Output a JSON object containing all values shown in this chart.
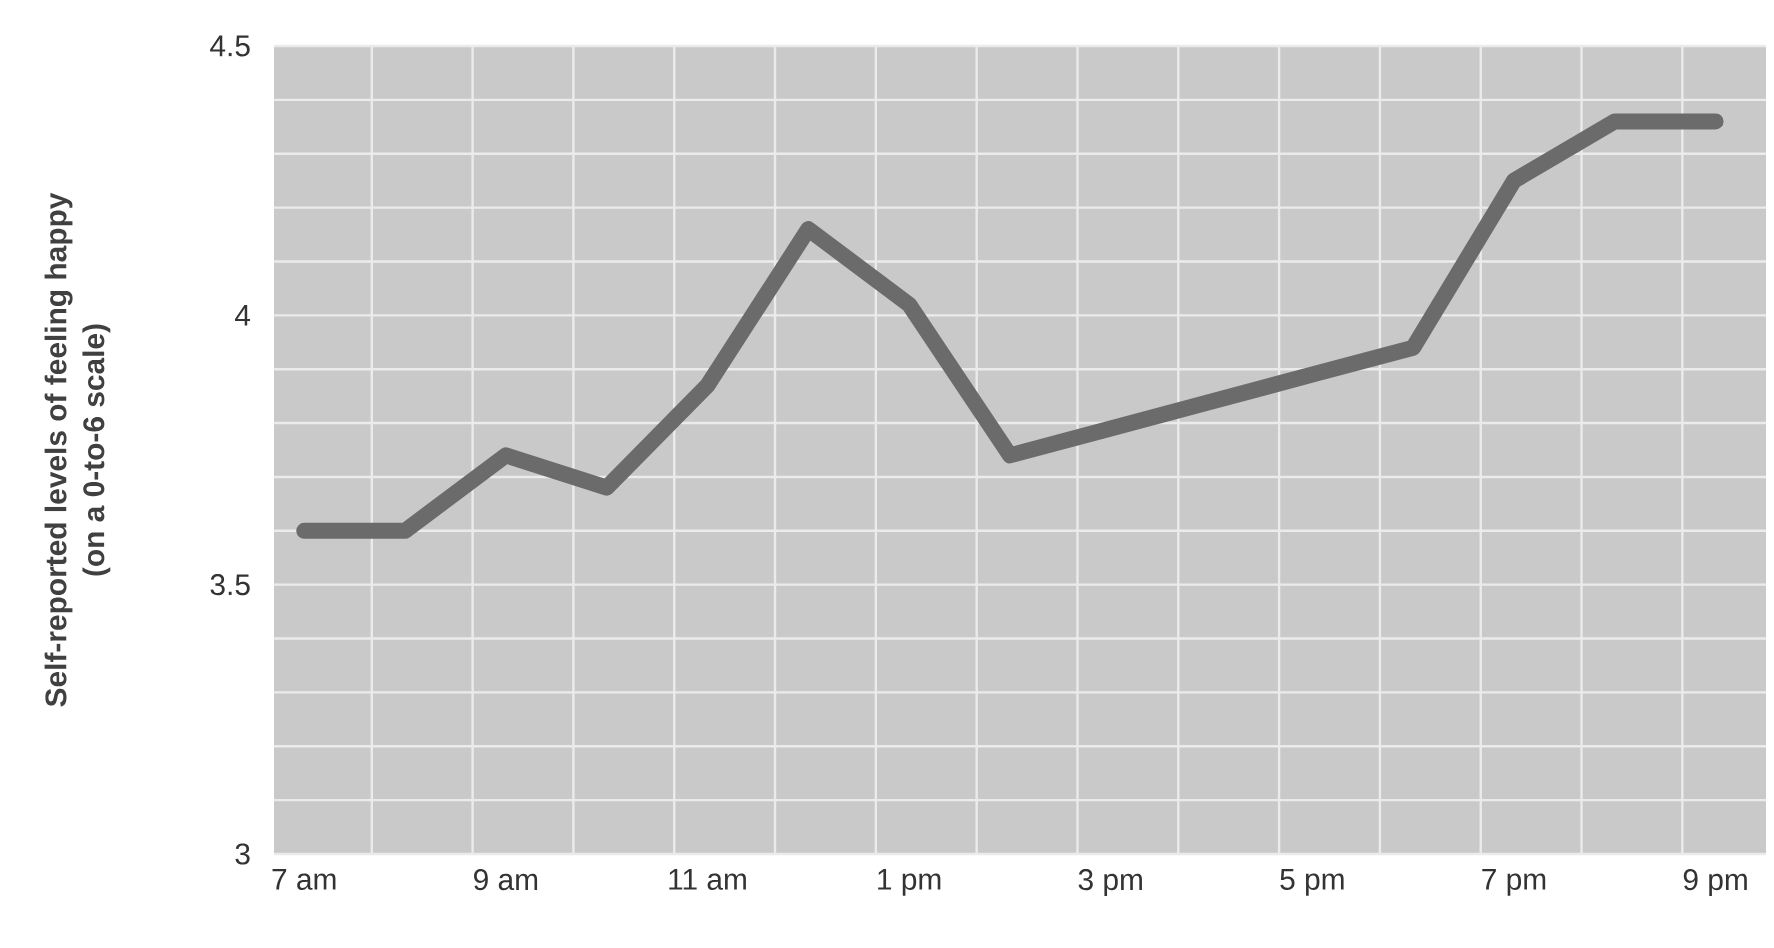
{
  "chart_data": {
    "type": "line",
    "ylabel": "Self-reported levels of feeling happy (on a 0-to-6 scale)",
    "categories": [
      "7 am",
      null,
      "9 am",
      null,
      "11 am",
      null,
      "1 pm",
      null,
      "3 pm",
      null,
      "5 pm",
      null,
      "7 pm",
      null,
      "9 pm"
    ],
    "series": [
      {
        "color": "#6b6b6b",
        "values": [
          3.6,
          3.6,
          3.74,
          3.68,
          3.87,
          4.16,
          4.02,
          3.74,
          3.79,
          3.84,
          3.89,
          3.94,
          4.25,
          4.36,
          4.36
        ]
      }
    ],
    "ylim": [
      3,
      4.5
    ],
    "yticks": [
      3,
      {
        "value": 3.1,
        "label": null
      },
      {
        "value": 3.2,
        "label": null
      },
      {
        "value": 3.3,
        "label": null
      },
      {
        "value": 3.4,
        "label": null
      },
      3.5,
      {
        "value": 3.6,
        "label": null
      },
      {
        "value": 3.7,
        "label": null
      },
      {
        "value": 3.8,
        "label": null
      },
      {
        "value": 3.9,
        "label": null
      },
      4,
      {
        "value": 4.1,
        "label": null
      },
      {
        "value": 4.2,
        "label": null
      },
      {
        "value": 4.3,
        "label": null
      },
      {
        "value": 4.4,
        "label": null
      },
      4.5
    ],
    "grid": true,
    "marker": "none",
    "line_style": "solid"
  }
}
